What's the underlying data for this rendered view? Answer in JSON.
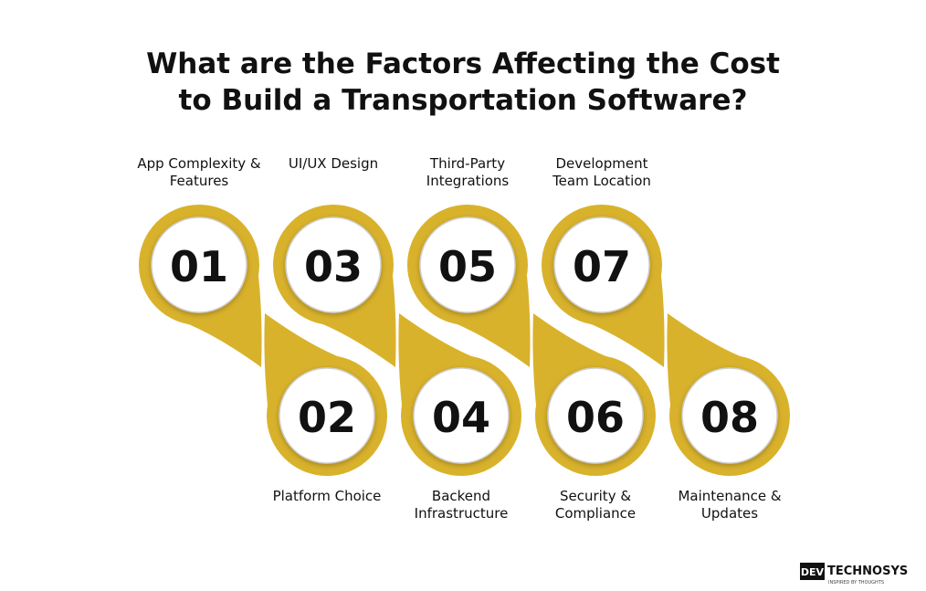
{
  "header": {
    "title": [
      "What are the Factors Affecting the Cost",
      "to Build a Transportation Software?"
    ]
  },
  "items": [
    {
      "number": "01",
      "label": [
        "App Complexity &",
        "Features"
      ]
    },
    {
      "number": "02",
      "label": [
        "Platform Choice"
      ]
    },
    {
      "number": "03",
      "label": [
        "UI/UX Design"
      ]
    },
    {
      "number": "04",
      "label": [
        "Backend",
        "Infrastructure"
      ]
    },
    {
      "number": "05",
      "label": [
        "Third-Party",
        "Integrations"
      ]
    },
    {
      "number": "06",
      "label": [
        "Security &",
        "Compliance"
      ]
    },
    {
      "number": "07",
      "label": [
        "Development",
        "Team Location"
      ]
    },
    {
      "number": "08",
      "label": [
        "Maintenance &",
        "Updates"
      ]
    }
  ],
  "logo": {
    "mark": "DEV",
    "name": "TECHNOSYS",
    "tagline": "INSPIRED BY THOUGHTS"
  }
}
